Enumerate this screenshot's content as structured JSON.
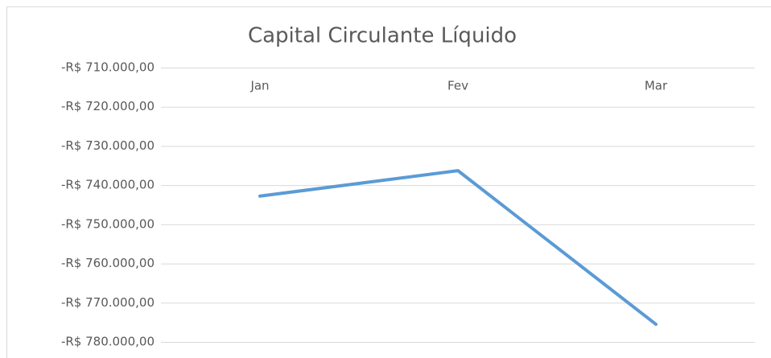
{
  "chart_data": {
    "type": "line",
    "title": "Capital Circulante Líquido",
    "categories": [
      "Jan",
      "Fev",
      "Mar"
    ],
    "values": [
      -742800,
      -736300,
      -775500
    ],
    "color": "#5b9bd5",
    "ylim": [
      -780000,
      -710000
    ],
    "yticks": [
      {
        "value": -710000,
        "label": "-R$ 710.000,00"
      },
      {
        "value": -720000,
        "label": "-R$ 720.000,00"
      },
      {
        "value": -730000,
        "label": "-R$ 730.000,00"
      },
      {
        "value": -740000,
        "label": "-R$ 740.000,00"
      },
      {
        "value": -750000,
        "label": "-R$ 750.000,00"
      },
      {
        "value": -760000,
        "label": "-R$ 760.000,00"
      },
      {
        "value": -770000,
        "label": "-R$ 770.000,00"
      },
      {
        "value": -780000,
        "label": "-R$ 780.000,00"
      }
    ],
    "grid": true
  }
}
